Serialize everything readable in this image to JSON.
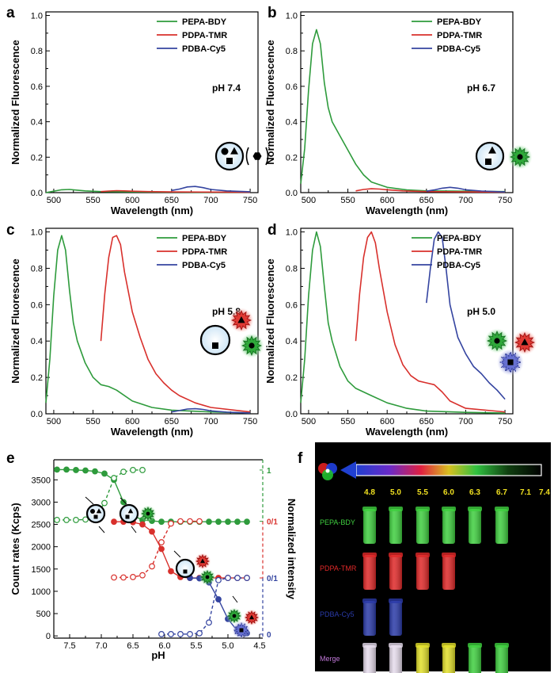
{
  "colors": {
    "green": "#2e9b3c",
    "red": "#d8302c",
    "blue": "#3444a0",
    "black": "#000000"
  },
  "chart_data": [
    {
      "panel": "a",
      "type": "line",
      "title": "",
      "annotation": "pH 7.4",
      "xlabel": "Wavelength (nm)",
      "ylabel": "Normalized Fluorescence",
      "xlim": [
        490,
        760
      ],
      "ylim": [
        0,
        1.02
      ],
      "xticks": [
        500,
        550,
        600,
        650,
        700,
        750
      ],
      "yticks": [
        0.0,
        0.2,
        0.4,
        0.6,
        0.8,
        1.0
      ],
      "legend": "top-right",
      "series": [
        {
          "name": "PEPA-BDY",
          "color": "green",
          "x": [
            490,
            500,
            510,
            520,
            530,
            540,
            560,
            600,
            650,
            700,
            750
          ],
          "y": [
            0.0,
            0.008,
            0.016,
            0.018,
            0.014,
            0.01,
            0.006,
            0.004,
            0.003,
            0.002,
            0.002
          ]
        },
        {
          "name": "PDPA-TMR",
          "color": "red",
          "x": [
            560,
            570,
            580,
            590,
            600,
            620,
            650,
            700,
            750
          ],
          "y": [
            0.006,
            0.009,
            0.011,
            0.01,
            0.008,
            0.006,
            0.004,
            0.003,
            0.002
          ]
        },
        {
          "name": "PDBA-Cy5",
          "color": "blue",
          "x": [
            650,
            660,
            670,
            680,
            690,
            700,
            720,
            750
          ],
          "y": [
            0.012,
            0.02,
            0.032,
            0.035,
            0.028,
            0.018,
            0.01,
            0.005
          ]
        }
      ]
    },
    {
      "panel": "b",
      "type": "line",
      "title": "",
      "annotation": "pH 6.7",
      "xlabel": "Wavelength (nm)",
      "ylabel": "Normalized Fluorescence",
      "xlim": [
        490,
        760
      ],
      "ylim": [
        0,
        1.02
      ],
      "xticks": [
        500,
        550,
        600,
        650,
        700,
        750
      ],
      "yticks": [
        0.0,
        0.2,
        0.4,
        0.6,
        0.8,
        1.0
      ],
      "legend": "top-right",
      "series": [
        {
          "name": "PEPA-BDY",
          "color": "green",
          "x": [
            490,
            495,
            500,
            505,
            510,
            515,
            520,
            525,
            530,
            540,
            550,
            560,
            570,
            580,
            600,
            625,
            650,
            700,
            750
          ],
          "y": [
            0.05,
            0.25,
            0.58,
            0.84,
            0.92,
            0.84,
            0.62,
            0.48,
            0.4,
            0.32,
            0.24,
            0.16,
            0.1,
            0.06,
            0.03,
            0.015,
            0.01,
            0.008,
            0.006
          ]
        },
        {
          "name": "PDPA-TMR",
          "color": "red",
          "x": [
            560,
            570,
            580,
            590,
            600,
            620,
            650,
            700,
            750
          ],
          "y": [
            0.01,
            0.018,
            0.022,
            0.02,
            0.016,
            0.01,
            0.006,
            0.004,
            0.003
          ]
        },
        {
          "name": "PDBA-Cy5",
          "color": "blue",
          "x": [
            650,
            660,
            670,
            680,
            690,
            700,
            720,
            750
          ],
          "y": [
            0.008,
            0.015,
            0.025,
            0.03,
            0.025,
            0.016,
            0.009,
            0.004
          ]
        }
      ]
    },
    {
      "panel": "c",
      "type": "line",
      "title": "",
      "annotation": "pH 5.8",
      "xlabel": "Wavelength (nm)",
      "ylabel": "Normalized Fluorescence",
      "xlim": [
        490,
        760
      ],
      "ylim": [
        0,
        1.02
      ],
      "xticks": [
        500,
        550,
        600,
        650,
        700,
        750
      ],
      "yticks": [
        0.0,
        0.2,
        0.4,
        0.6,
        0.8,
        1.0
      ],
      "legend": "top-right",
      "series": [
        {
          "name": "PEPA-BDY",
          "color": "green",
          "x": [
            490,
            495,
            500,
            505,
            510,
            515,
            520,
            525,
            530,
            540,
            550,
            560,
            570,
            580,
            600,
            625,
            650,
            700,
            750
          ],
          "y": [
            0.06,
            0.3,
            0.65,
            0.9,
            0.98,
            0.9,
            0.68,
            0.5,
            0.4,
            0.28,
            0.2,
            0.16,
            0.15,
            0.13,
            0.07,
            0.035,
            0.02,
            0.01,
            0.005
          ]
        },
        {
          "name": "PDPA-TMR",
          "color": "red",
          "x": [
            560,
            565,
            570,
            575,
            580,
            585,
            590,
            600,
            610,
            620,
            630,
            640,
            650,
            660,
            680,
            700,
            750
          ],
          "y": [
            0.4,
            0.66,
            0.86,
            0.97,
            0.98,
            0.93,
            0.78,
            0.56,
            0.42,
            0.3,
            0.22,
            0.17,
            0.13,
            0.1,
            0.06,
            0.035,
            0.01
          ]
        },
        {
          "name": "PDBA-Cy5",
          "color": "blue",
          "x": [
            650,
            660,
            670,
            680,
            690,
            700,
            720,
            750
          ],
          "y": [
            0.01,
            0.018,
            0.026,
            0.028,
            0.024,
            0.016,
            0.009,
            0.004
          ]
        }
      ]
    },
    {
      "panel": "d",
      "type": "line",
      "title": "",
      "annotation": "pH 5.0",
      "xlabel": "Wavelength (nm)",
      "ylabel": "Normalized Fluorescence",
      "xlim": [
        490,
        760
      ],
      "ylim": [
        0,
        1.02
      ],
      "xticks": [
        500,
        550,
        600,
        650,
        700,
        750
      ],
      "yticks": [
        0.0,
        0.2,
        0.4,
        0.6,
        0.8,
        1.0
      ],
      "legend": "top-right",
      "series": [
        {
          "name": "PEPA-BDY",
          "color": "green",
          "x": [
            490,
            495,
            500,
            505,
            510,
            515,
            520,
            525,
            530,
            540,
            550,
            560,
            570,
            580,
            600,
            625,
            650,
            700,
            750
          ],
          "y": [
            0.06,
            0.3,
            0.65,
            0.9,
            1.0,
            0.92,
            0.7,
            0.5,
            0.4,
            0.26,
            0.18,
            0.14,
            0.12,
            0.1,
            0.06,
            0.03,
            0.015,
            0.008,
            0.004
          ]
        },
        {
          "name": "PDPA-TMR",
          "color": "red",
          "x": [
            560,
            565,
            570,
            575,
            580,
            585,
            590,
            600,
            610,
            620,
            630,
            640,
            650,
            660,
            670,
            680,
            700,
            750
          ],
          "y": [
            0.4,
            0.66,
            0.86,
            0.97,
            1.0,
            0.94,
            0.8,
            0.56,
            0.38,
            0.27,
            0.21,
            0.18,
            0.17,
            0.16,
            0.12,
            0.07,
            0.03,
            0.01
          ]
        },
        {
          "name": "PDBA-Cy5",
          "color": "blue",
          "x": [
            650,
            655,
            660,
            665,
            670,
            675,
            680,
            690,
            700,
            710,
            720,
            730,
            740,
            750
          ],
          "y": [
            0.61,
            0.8,
            0.96,
            1.0,
            0.97,
            0.8,
            0.6,
            0.42,
            0.33,
            0.26,
            0.22,
            0.17,
            0.13,
            0.08
          ]
        }
      ]
    },
    {
      "panel": "e",
      "type": "line",
      "title": "",
      "xlabel": "pH",
      "ylabel": "Count rates (Kcps)",
      "y2label": "Normalized intensity",
      "xlim": [
        7.75,
        4.45
      ],
      "ylim": [
        -50,
        3950
      ],
      "xticks": [
        7.5,
        7.0,
        6.5,
        6.0,
        5.5,
        5.0,
        4.5
      ],
      "yticks": [
        0,
        500,
        1000,
        1500,
        2000,
        2500,
        3000,
        3500
      ],
      "right_axis_labels": [
        "1",
        "0/1",
        "0/1",
        "0"
      ],
      "series": [
        {
          "name": "PEPA-BDY count rate",
          "color": "green",
          "style": "solid",
          "marker": "filled",
          "x": [
            7.7,
            7.55,
            7.4,
            7.25,
            7.1,
            6.95,
            6.8,
            6.65,
            6.5,
            6.35,
            6.2,
            6.05,
            5.9,
            5.75,
            5.6,
            5.45,
            5.3,
            5.15,
            5.0,
            4.85,
            4.7
          ],
          "y": [
            3730,
            3730,
            3720,
            3710,
            3690,
            3640,
            3500,
            3000,
            2700,
            2600,
            2580,
            2560,
            2560,
            2560,
            2560,
            2560,
            2560,
            2560,
            2560,
            2560,
            2560
          ]
        },
        {
          "name": "PEPA-BDY intensity",
          "color": "green",
          "style": "dashed",
          "marker": "open",
          "x": [
            7.7,
            7.55,
            7.4,
            7.25,
            7.1,
            6.95,
            6.8,
            6.65,
            6.5,
            6.35
          ],
          "y": [
            2600,
            2600,
            2600,
            2610,
            2660,
            2980,
            3540,
            3680,
            3720,
            3720
          ]
        },
        {
          "name": "PDPA-TMR count rate",
          "color": "red",
          "style": "solid",
          "marker": "filled",
          "x": [
            6.8,
            6.65,
            6.5,
            6.35,
            6.2,
            6.05,
            5.9,
            5.75,
            5.6,
            5.45,
            5.3,
            5.15,
            5.0,
            4.85,
            4.7
          ],
          "y": [
            2560,
            2560,
            2550,
            2500,
            2340,
            1950,
            1450,
            1320,
            1300,
            1300,
            1300,
            1300,
            1300,
            1300,
            1300
          ]
        },
        {
          "name": "PDPA-TMR intensity",
          "color": "red",
          "style": "dashed",
          "marker": "open",
          "x": [
            6.8,
            6.65,
            6.5,
            6.35,
            6.2,
            6.05,
            5.9,
            5.75,
            5.6,
            5.45
          ],
          "y": [
            1310,
            1310,
            1320,
            1360,
            1560,
            2100,
            2520,
            2570,
            2570,
            2570
          ]
        },
        {
          "name": "PDBA-Cy5 count rate",
          "color": "blue",
          "style": "solid",
          "marker": "filled",
          "x": [
            5.6,
            5.45,
            5.3,
            5.15,
            5.0,
            4.85,
            4.7
          ],
          "y": [
            1300,
            1290,
            1200,
            820,
            380,
            110,
            60
          ]
        },
        {
          "name": "PDBA-Cy5 intensity",
          "color": "blue",
          "style": "dashed",
          "marker": "open",
          "x": [
            6.05,
            5.9,
            5.75,
            5.6,
            5.45,
            5.3,
            5.15,
            5.0,
            4.85,
            4.7
          ],
          "y": [
            40,
            40,
            40,
            40,
            60,
            300,
            1250,
            1300,
            1300,
            1300
          ]
        }
      ]
    },
    {
      "panel": "f",
      "type": "table",
      "ph_values": [
        "4.8",
        "5.0",
        "5.5",
        "6.0",
        "6.3",
        "6.7",
        "7.1",
        "7.4"
      ],
      "rows": [
        {
          "label": "PEPA-BDY",
          "label_color": "#3fcf3f",
          "lit": [
            1,
            1,
            1,
            1,
            1,
            1,
            0,
            0
          ],
          "colors": [
            "#3fcf3f",
            "#3fcf3f",
            "#3fcf3f",
            "#3fcf3f",
            "#3fcf3f",
            "#3fcf3f",
            "",
            ""
          ]
        },
        {
          "label": "PDPA-TMR",
          "label_color": "#e02828",
          "lit": [
            1,
            1,
            1,
            1,
            0,
            0,
            0,
            0
          ],
          "colors": [
            "#e02828",
            "#e02828",
            "#e02828",
            "#e02828",
            "",
            "",
            "",
            ""
          ]
        },
        {
          "label": "PDBA-Cy5",
          "label_color": "#2a3aa8",
          "lit": [
            1,
            1,
            0,
            0,
            0,
            0,
            0,
            0
          ],
          "colors": [
            "#2a3aa8",
            "#2a3aa8",
            "",
            "",
            "",
            "",
            "",
            ""
          ]
        },
        {
          "label": "Merge",
          "label_color": "#c078d8",
          "lit": [
            1,
            1,
            1,
            1,
            1,
            1,
            0,
            0
          ],
          "colors": [
            "#e6dcec",
            "#e6dcec",
            "#e2e02a",
            "#e2e02a",
            "#3fcf3f",
            "#3fcf3f",
            "",
            ""
          ]
        }
      ]
    }
  ],
  "panels": {
    "a": {
      "letter": "a"
    },
    "b": {
      "letter": "b"
    },
    "c": {
      "letter": "c"
    },
    "d": {
      "letter": "d"
    },
    "e": {
      "letter": "e"
    },
    "f": {
      "letter": "f"
    }
  }
}
